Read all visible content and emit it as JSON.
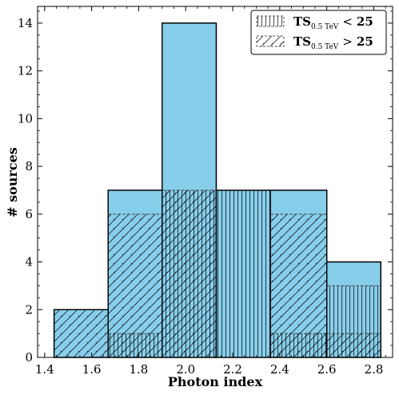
{
  "chart_data": {
    "type": "bar",
    "xlabel": "Photon index",
    "ylabel": "# sources",
    "xlim": [
      1.37,
      2.88
    ],
    "ylim": [
      0,
      14.7
    ],
    "x_ticks": [
      1.4,
      1.6,
      1.8,
      2.0,
      2.2,
      2.4,
      2.6,
      2.8
    ],
    "x_tick_labels": [
      "1.4",
      "1.6",
      "1.8",
      "2.0",
      "2.2",
      "2.4",
      "2.6",
      "2.8"
    ],
    "y_ticks": [
      0,
      2,
      4,
      6,
      8,
      10,
      12,
      14
    ],
    "y_tick_labels": [
      "0",
      "2",
      "4",
      "6",
      "8",
      "10",
      "12",
      "14"
    ],
    "bin_edges": [
      1.44,
      1.67,
      1.9,
      2.13,
      2.36,
      2.6,
      2.83
    ],
    "total_counts": [
      2,
      7,
      14,
      7,
      7,
      4
    ],
    "series": [
      {
        "name": "TS_{0.5 TeV} < 25",
        "hatch": "vertical",
        "values": [
          0,
          1,
          7,
          7,
          1,
          3
        ]
      },
      {
        "name": "TS_{0.5 TeV} > 25",
        "hatch": "diagonal",
        "values": [
          2,
          6,
          7,
          0,
          6,
          1
        ]
      }
    ],
    "legend": {
      "position": "top-right",
      "entries": [
        {
          "main": "TS",
          "sub": "0.5 TeV",
          "op": "<",
          "val": "25"
        },
        {
          "main": "TS",
          "sub": "0.5 TeV",
          "op": ">",
          "val": "25"
        }
      ]
    },
    "colors": {
      "fill": "#87ceeb",
      "edge": "#000000"
    }
  }
}
